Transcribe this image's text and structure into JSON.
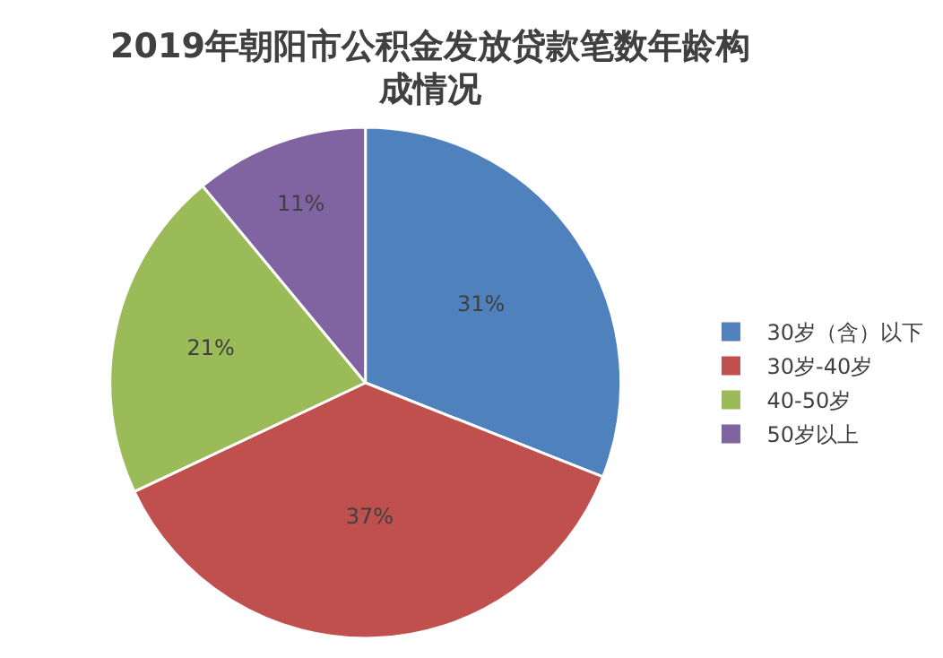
{
  "chart_data": {
    "type": "pie",
    "title": "2019年朝阳市公积金发放贷款笔数年龄构成情况",
    "categories": [
      "30岁（含）以下",
      "30岁-40岁",
      "40-50岁",
      "50岁以上"
    ],
    "values": [
      31,
      37,
      21,
      11
    ],
    "colors": [
      "#4f81bd",
      "#c0504d",
      "#9bbb59",
      "#8064a2"
    ],
    "value_labels": [
      "31%",
      "37%",
      "21%",
      "11%"
    ],
    "legend": "right"
  }
}
